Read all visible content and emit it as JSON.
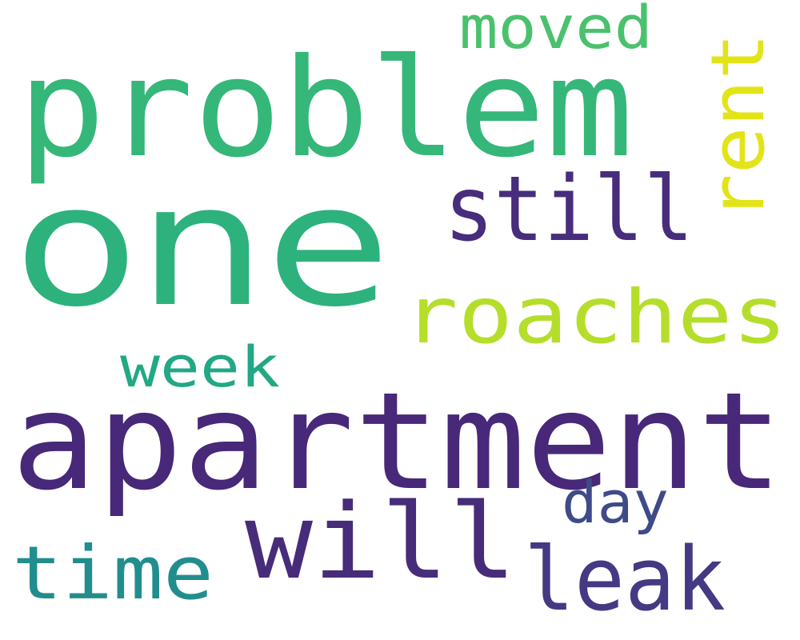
{
  "words": [
    {
      "text": "one",
      "color": "#2db27d"
    },
    {
      "text": "apartment",
      "color": "#482878"
    },
    {
      "text": "problem",
      "color": "#35b779"
    },
    {
      "text": "roaches",
      "color": "#b5de2b"
    },
    {
      "text": "will",
      "color": "#472c7a"
    },
    {
      "text": "still",
      "color": "#472d7b"
    },
    {
      "text": "leak",
      "color": "#443983"
    },
    {
      "text": "time",
      "color": "#228d8d"
    },
    {
      "text": "rent",
      "color": "#e2e418"
    },
    {
      "text": "week",
      "color": "#22a884"
    },
    {
      "text": "moved",
      "color": "#4ac16d"
    },
    {
      "text": "day",
      "color": "#3e4a89"
    }
  ]
}
